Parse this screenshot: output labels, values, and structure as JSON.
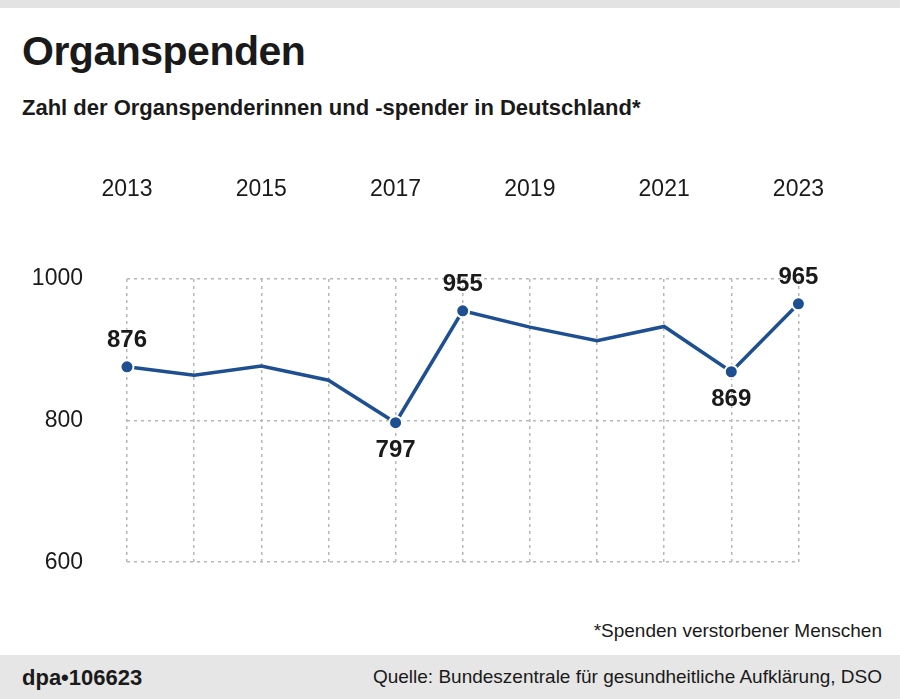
{
  "chart_data": {
    "type": "line",
    "title": "Organspenden",
    "subtitle": "Zahl der Organspenderinnen und -spender in Deutschland*",
    "note": "*Spenden verstorbener Menschen",
    "credit": "dpa•106623",
    "source": "Quelle: Bundeszentrale für gesundheitliche Aufklärung, DSO",
    "categories": [
      "2013",
      null,
      "2015",
      null,
      "2017",
      null,
      "2019",
      null,
      "2021",
      null,
      "2023"
    ],
    "values": [
      876,
      864,
      877,
      857,
      797,
      955,
      932,
      913,
      933,
      869,
      965
    ],
    "value_labels": [
      "876",
      null,
      null,
      null,
      "797",
      "955",
      null,
      null,
      null,
      "869",
      "965"
    ],
    "color": "#1d4f91",
    "marker": "circle",
    "ylim": [
      600,
      1000
    ],
    "yticks": [
      600,
      800,
      1000
    ],
    "grid": true,
    "data_labels": true
  }
}
